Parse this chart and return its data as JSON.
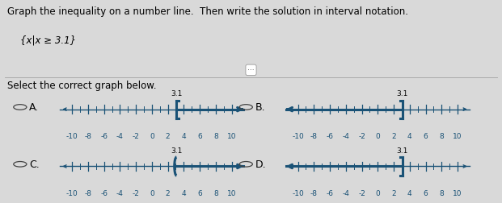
{
  "title_line1": "Graph the inequality on a number line.  Then write the solution in interval notation.",
  "title_line2": "{x|x ≥ 3.1}",
  "subtitle": "Select the correct graph below.",
  "bg_color": "#d9d9d9",
  "line_color": "#1a5276",
  "text_color": "#000000",
  "tick_positions": [
    -10,
    -8,
    -6,
    -4,
    -2,
    0,
    2,
    4,
    6,
    8,
    10
  ],
  "minor_ticks": [
    -9,
    -7,
    -5,
    -3,
    -1,
    1,
    3,
    5,
    7,
    9
  ],
  "point": 3.1,
  "font_size_title": 8.5,
  "font_size_label": 8.5,
  "font_size_tick": 6.5,
  "font_size_option": 9,
  "options": [
    {
      "label": "A.",
      "row": 0,
      "col": 0,
      "direction": "right",
      "bracket": "square"
    },
    {
      "label": "B.",
      "row": 0,
      "col": 1,
      "direction": "left",
      "bracket": "square"
    },
    {
      "label": "C.",
      "row": 1,
      "col": 0,
      "direction": "right",
      "bracket": "round"
    },
    {
      "label": "D.",
      "row": 1,
      "col": 1,
      "direction": "left",
      "bracket": "square_open"
    }
  ]
}
